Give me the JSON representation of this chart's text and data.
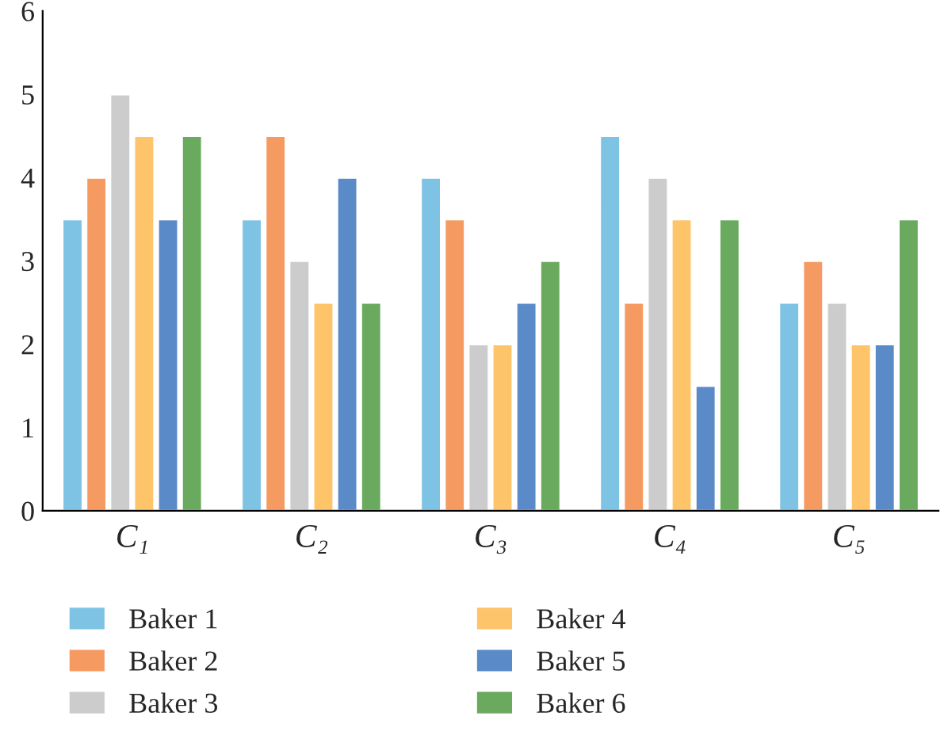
{
  "chart_data": {
    "type": "bar",
    "categories": [
      "C₁",
      "C₂",
      "C₃",
      "C₄",
      "C₅"
    ],
    "series": [
      {
        "name": "Baker 1",
        "color": "#7fc3e4",
        "values": [
          3.5,
          3.5,
          4,
          4.5,
          2.5
        ]
      },
      {
        "name": "Baker 2",
        "color": "#f59b62",
        "values": [
          4,
          4.5,
          3.5,
          2.5,
          3
        ]
      },
      {
        "name": "Baker 3",
        "color": "#cccccc",
        "values": [
          5,
          3,
          2,
          4,
          2.5
        ]
      },
      {
        "name": "Baker 4",
        "color": "#fdc46a",
        "values": [
          4.5,
          2.5,
          2,
          3.5,
          2
        ]
      },
      {
        "name": "Baker 5",
        "color": "#5b8ac9",
        "values": [
          3.5,
          4,
          2.5,
          1.5,
          2
        ]
      },
      {
        "name": "Baker 6",
        "color": "#6aaa5e",
        "values": [
          4.5,
          2.5,
          3,
          3.5,
          3.5
        ]
      }
    ],
    "ylim": [
      0,
      6
    ],
    "yticks": [
      0,
      1,
      2,
      3,
      4,
      5,
      6
    ],
    "grid": false,
    "legend": "bottom"
  }
}
